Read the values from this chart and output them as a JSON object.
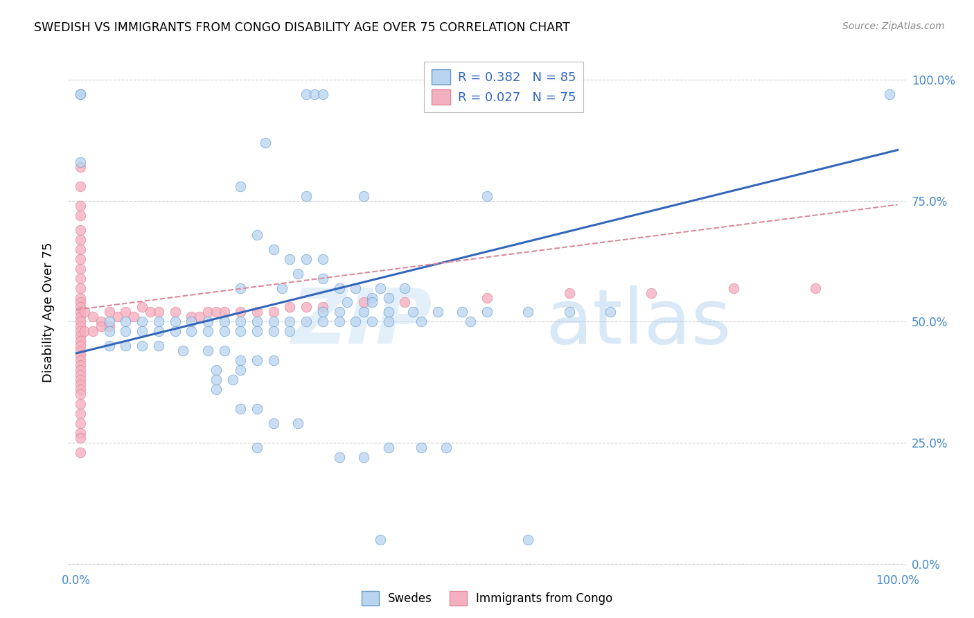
{
  "title": "SWEDISH VS IMMIGRANTS FROM CONGO DISABILITY AGE OVER 75 CORRELATION CHART",
  "source": "Source: ZipAtlas.com",
  "ylabel": "Disability Age Over 75",
  "ytick_labels": [
    "0.0%",
    "25.0%",
    "50.0%",
    "75.0%",
    "100.0%"
  ],
  "legend_blue_label": "Swedes",
  "legend_pink_label": "Immigrants from Congo",
  "blue_color": "#b8d4f0",
  "pink_color": "#f5b0c0",
  "blue_edge_color": "#6699cc",
  "pink_edge_color": "#dd8899",
  "blue_line_color": "#3366bb",
  "pink_line_color": "#dd8899",
  "watermark_zip": "ZIP",
  "watermark_atlas": "atlas",
  "blue_scatter": [
    [
      0.005,
      0.97
    ],
    [
      0.005,
      0.97
    ],
    [
      0.005,
      0.83
    ],
    [
      0.28,
      0.97
    ],
    [
      0.29,
      0.97
    ],
    [
      0.3,
      0.97
    ],
    [
      0.6,
      0.97
    ],
    [
      0.99,
      0.97
    ],
    [
      0.23,
      0.87
    ],
    [
      0.2,
      0.78
    ],
    [
      0.28,
      0.76
    ],
    [
      0.35,
      0.76
    ],
    [
      0.5,
      0.76
    ],
    [
      0.22,
      0.68
    ],
    [
      0.24,
      0.65
    ],
    [
      0.26,
      0.63
    ],
    [
      0.28,
      0.63
    ],
    [
      0.3,
      0.63
    ],
    [
      0.27,
      0.6
    ],
    [
      0.3,
      0.59
    ],
    [
      0.2,
      0.57
    ],
    [
      0.25,
      0.57
    ],
    [
      0.32,
      0.57
    ],
    [
      0.34,
      0.57
    ],
    [
      0.37,
      0.57
    ],
    [
      0.4,
      0.57
    ],
    [
      0.36,
      0.55
    ],
    [
      0.38,
      0.55
    ],
    [
      0.33,
      0.54
    ],
    [
      0.36,
      0.54
    ],
    [
      0.3,
      0.52
    ],
    [
      0.32,
      0.52
    ],
    [
      0.35,
      0.52
    ],
    [
      0.38,
      0.52
    ],
    [
      0.41,
      0.52
    ],
    [
      0.44,
      0.52
    ],
    [
      0.47,
      0.52
    ],
    [
      0.5,
      0.52
    ],
    [
      0.55,
      0.52
    ],
    [
      0.6,
      0.52
    ],
    [
      0.65,
      0.52
    ],
    [
      0.04,
      0.5
    ],
    [
      0.06,
      0.5
    ],
    [
      0.08,
      0.5
    ],
    [
      0.1,
      0.5
    ],
    [
      0.12,
      0.5
    ],
    [
      0.14,
      0.5
    ],
    [
      0.16,
      0.5
    ],
    [
      0.18,
      0.5
    ],
    [
      0.2,
      0.5
    ],
    [
      0.22,
      0.5
    ],
    [
      0.24,
      0.5
    ],
    [
      0.26,
      0.5
    ],
    [
      0.28,
      0.5
    ],
    [
      0.3,
      0.5
    ],
    [
      0.32,
      0.5
    ],
    [
      0.34,
      0.5
    ],
    [
      0.36,
      0.5
    ],
    [
      0.38,
      0.5
    ],
    [
      0.42,
      0.5
    ],
    [
      0.48,
      0.5
    ],
    [
      0.04,
      0.48
    ],
    [
      0.06,
      0.48
    ],
    [
      0.08,
      0.48
    ],
    [
      0.1,
      0.48
    ],
    [
      0.12,
      0.48
    ],
    [
      0.14,
      0.48
    ],
    [
      0.16,
      0.48
    ],
    [
      0.18,
      0.48
    ],
    [
      0.2,
      0.48
    ],
    [
      0.22,
      0.48
    ],
    [
      0.24,
      0.48
    ],
    [
      0.26,
      0.48
    ],
    [
      0.04,
      0.45
    ],
    [
      0.06,
      0.45
    ],
    [
      0.08,
      0.45
    ],
    [
      0.1,
      0.45
    ],
    [
      0.13,
      0.44
    ],
    [
      0.16,
      0.44
    ],
    [
      0.18,
      0.44
    ],
    [
      0.2,
      0.42
    ],
    [
      0.22,
      0.42
    ],
    [
      0.24,
      0.42
    ],
    [
      0.17,
      0.4
    ],
    [
      0.2,
      0.4
    ],
    [
      0.17,
      0.38
    ],
    [
      0.19,
      0.38
    ],
    [
      0.17,
      0.36
    ],
    [
      0.2,
      0.32
    ],
    [
      0.22,
      0.32
    ],
    [
      0.24,
      0.29
    ],
    [
      0.27,
      0.29
    ],
    [
      0.22,
      0.24
    ],
    [
      0.32,
      0.22
    ],
    [
      0.35,
      0.22
    ],
    [
      0.38,
      0.24
    ],
    [
      0.42,
      0.24
    ],
    [
      0.45,
      0.24
    ],
    [
      0.37,
      0.05
    ],
    [
      0.55,
      0.05
    ]
  ],
  "pink_scatter": [
    [
      0.005,
      0.82
    ],
    [
      0.005,
      0.78
    ],
    [
      0.005,
      0.74
    ],
    [
      0.005,
      0.72
    ],
    [
      0.005,
      0.69
    ],
    [
      0.005,
      0.67
    ],
    [
      0.005,
      0.65
    ],
    [
      0.005,
      0.63
    ],
    [
      0.005,
      0.61
    ],
    [
      0.005,
      0.59
    ],
    [
      0.005,
      0.57
    ],
    [
      0.005,
      0.55
    ],
    [
      0.005,
      0.54
    ],
    [
      0.005,
      0.53
    ],
    [
      0.005,
      0.52
    ],
    [
      0.005,
      0.51
    ],
    [
      0.005,
      0.5
    ],
    [
      0.005,
      0.49
    ],
    [
      0.005,
      0.48
    ],
    [
      0.005,
      0.47
    ],
    [
      0.005,
      0.46
    ],
    [
      0.005,
      0.45
    ],
    [
      0.005,
      0.44
    ],
    [
      0.005,
      0.43
    ],
    [
      0.005,
      0.42
    ],
    [
      0.005,
      0.41
    ],
    [
      0.005,
      0.4
    ],
    [
      0.005,
      0.39
    ],
    [
      0.005,
      0.38
    ],
    [
      0.005,
      0.37
    ],
    [
      0.005,
      0.36
    ],
    [
      0.005,
      0.35
    ],
    [
      0.005,
      0.33
    ],
    [
      0.005,
      0.31
    ],
    [
      0.005,
      0.29
    ],
    [
      0.005,
      0.27
    ],
    [
      0.01,
      0.52
    ],
    [
      0.02,
      0.51
    ],
    [
      0.03,
      0.5
    ],
    [
      0.04,
      0.52
    ],
    [
      0.05,
      0.51
    ],
    [
      0.06,
      0.52
    ],
    [
      0.07,
      0.51
    ],
    [
      0.08,
      0.53
    ],
    [
      0.09,
      0.52
    ],
    [
      0.1,
      0.52
    ],
    [
      0.12,
      0.52
    ],
    [
      0.14,
      0.51
    ],
    [
      0.15,
      0.51
    ],
    [
      0.16,
      0.52
    ],
    [
      0.17,
      0.52
    ],
    [
      0.18,
      0.52
    ],
    [
      0.2,
      0.52
    ],
    [
      0.22,
      0.52
    ],
    [
      0.24,
      0.52
    ],
    [
      0.26,
      0.53
    ],
    [
      0.28,
      0.53
    ],
    [
      0.3,
      0.53
    ],
    [
      0.35,
      0.54
    ],
    [
      0.4,
      0.54
    ],
    [
      0.5,
      0.55
    ],
    [
      0.6,
      0.56
    ],
    [
      0.7,
      0.56
    ],
    [
      0.8,
      0.57
    ],
    [
      0.9,
      0.57
    ],
    [
      0.01,
      0.48
    ],
    [
      0.02,
      0.48
    ],
    [
      0.03,
      0.49
    ],
    [
      0.04,
      0.49
    ],
    [
      0.005,
      0.26
    ],
    [
      0.005,
      0.23
    ]
  ],
  "blue_line_x": [
    0.0,
    1.0
  ],
  "blue_line_y": [
    0.435,
    0.855
  ],
  "pink_line_x": [
    0.0,
    1.0
  ],
  "pink_line_y": [
    0.525,
    0.742
  ],
  "xlim": [
    -0.01,
    1.01
  ],
  "ylim": [
    -0.01,
    1.05
  ],
  "xtick_positions": [
    0.0,
    0.2,
    0.4,
    0.6,
    0.8,
    1.0
  ],
  "xtick_labels": [
    "0.0%",
    "",
    "",
    "",
    "",
    "100.0%"
  ],
  "ytick_positions": [
    0.0,
    0.25,
    0.5,
    0.75,
    1.0
  ],
  "ytick_labels_right": [
    "0.0%",
    "25.0%",
    "50.0%",
    "75.0%",
    "100.0%"
  ]
}
